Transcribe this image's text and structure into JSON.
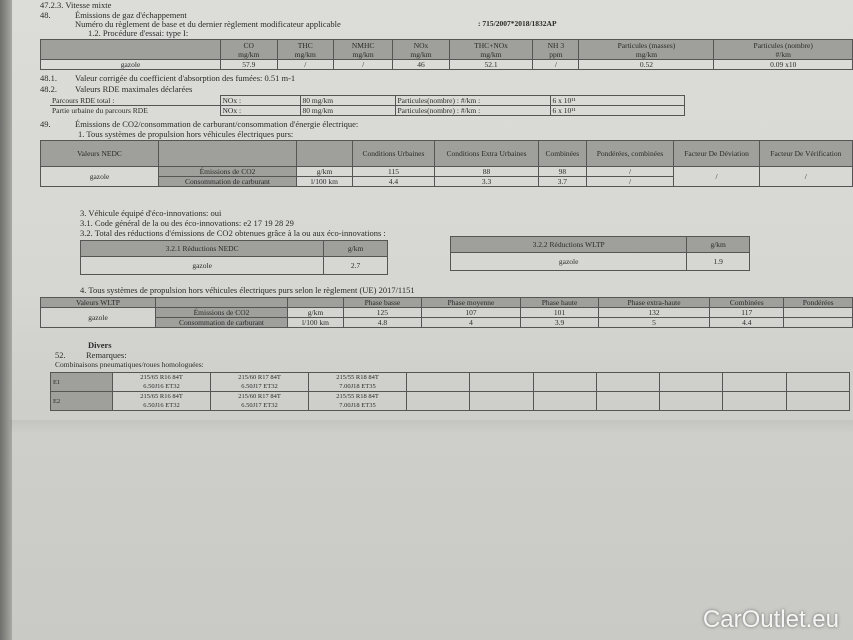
{
  "header": {
    "cut_line": "47.2.3. Vitesse mixte",
    "s48_num": "48.",
    "s48_title": "Émissions de gaz d'échappement",
    "reg_label": "Numéro du règlement de base et du dernier règlement modificateur applicable",
    "reg_value": ": 715/2007*2018/1832AP",
    "proc": "1.2. Procédure d'essai: type I:"
  },
  "emissions": {
    "headers": [
      [
        "CO",
        "mg/km"
      ],
      [
        "THC",
        "mg/km"
      ],
      [
        "NMHC",
        "mg/km"
      ],
      [
        "NOx",
        "mg/km"
      ],
      [
        "THC+NOx",
        "mg/km"
      ],
      [
        "NH 3",
        "ppm"
      ],
      [
        "Particules (masses)",
        "mg/km"
      ],
      [
        "Particules (nombre)",
        "#/km"
      ]
    ],
    "row_label": "gazole",
    "values": [
      "57.9",
      "/",
      "/",
      "46",
      "52.1",
      "/",
      "0.52",
      "0.09 x10"
    ]
  },
  "s48_1": {
    "num": "48.1.",
    "text": "Valeur corrigée du coefficient d'absorption des fumées: 0.51 m-1"
  },
  "s48_2": {
    "num": "48.2.",
    "text": "Valeurs RDE maximales déclarées",
    "rows": [
      {
        "label": "Parcours RDE total :",
        "nox": "NOx :",
        "nox_val": "80 mg/km",
        "pn": "Particules(nombre) : #/km :",
        "pn_val": "6 x 10¹¹"
      },
      {
        "label": "Partie urbaine du parcours RDE",
        "nox": "NOx :",
        "nox_val": "80 mg/km",
        "pn": "Particules(nombre) : #/km :",
        "pn_val": "6 x 10¹¹"
      }
    ]
  },
  "s49": {
    "num": "49.",
    "title": "Émissions de CO2/consommation de carburant/consommation d'énergie électrique:",
    "sub": "1. Tous systèmes de propulsion hors véhicules électriques purs:",
    "nedc": {
      "corner": "Valeurs NEDC",
      "headers": [
        "Conditions Urbaines",
        "Conditions Extra Urbaines",
        "Combinées",
        "Pondérées, combinées",
        "Facteur De Déviation",
        "Facteur De Vérification"
      ],
      "fuel": "gazole",
      "rows": [
        {
          "label": "Émissions de CO2",
          "unit": "g/km",
          "values": [
            "115",
            "88",
            "98",
            "/"
          ]
        },
        {
          "label": "Consommation de carburant",
          "unit": "l/100 km",
          "values": [
            "4.4",
            "3.3",
            "3.7",
            "/"
          ]
        }
      ],
      "factors": [
        "/",
        "/"
      ]
    }
  },
  "eco": {
    "l3": "3. Véhicule équipé d'éco-innovations: oui",
    "l31": "3.1. Code général de la ou des éco-innovations: e2 17 19 28 29",
    "l32": "3.2. Total des réductions d'émissions de CO2 obtenues grâce à la ou aux éco-innovations :",
    "nedc": {
      "h1": "3.2.1 Réductions NEDC",
      "h2": "g/km",
      "fuel": "gazole",
      "value": "2.7"
    },
    "wltp": {
      "h1": "3.2.2 Réductions WLTP",
      "h2": "g/km",
      "fuel": "gazole",
      "value": "1.9"
    }
  },
  "s4": {
    "title": "4. Tous systèmes de propulsion hors véhicules électriques purs selon le règlement (UE) 2017/1151",
    "corner": "Valeurs WLTP",
    "headers": [
      "Phase basse",
      "Phase moyenne",
      "Phase haute",
      "Phase extra-haute",
      "Combinées",
      "Pondérées"
    ],
    "fuel": "gazole",
    "rows": [
      {
        "label": "Émissions de CO2",
        "unit": "g/km",
        "values": [
          "125",
          "107",
          "101",
          "132",
          "117",
          ""
        ]
      },
      {
        "label": "Consommation de carburant",
        "unit": "l/100 km",
        "values": [
          "4.8",
          "4",
          "3.9",
          "5",
          "4.4",
          ""
        ]
      }
    ]
  },
  "divers": {
    "title": "Divers",
    "num": "52.",
    "remarks": "Remarques:",
    "combos": "Combinaisons pneumatiques/roues homologuées:",
    "rows": [
      {
        "id": "E1",
        "c": [
          [
            "215/65 R16 84T",
            "6.50J16 ET32"
          ],
          [
            "215/60 R17 84T",
            "6.50J17 ET32"
          ],
          [
            "215/55 R18 84T",
            "7.00J18 ET35"
          ]
        ]
      },
      {
        "id": "E2",
        "c": [
          [
            "215/65 R16 84T",
            "6.50J16 ET32"
          ],
          [
            "215/60 R17 84T",
            "6.50J17 ET32"
          ],
          [
            "215/55 R18 84T",
            "7.00J18 ET35"
          ]
        ]
      }
    ]
  },
  "watermark": "CarOutlet.eu"
}
